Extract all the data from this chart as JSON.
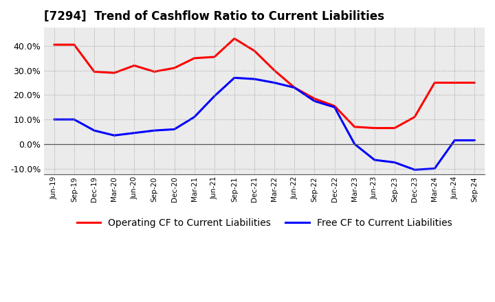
{
  "title": "[7294]  Trend of Cashflow Ratio to Current Liabilities",
  "x_labels": [
    "Jun-19",
    "Sep-19",
    "Dec-19",
    "Mar-20",
    "Jun-20",
    "Sep-20",
    "Dec-20",
    "Mar-21",
    "Jun-21",
    "Sep-21",
    "Dec-21",
    "Mar-22",
    "Jun-22",
    "Sep-22",
    "Dec-22",
    "Mar-23",
    "Jun-23",
    "Sep-23",
    "Dec-23",
    "Mar-24",
    "Jun-24",
    "Sep-24"
  ],
  "operating_cf": [
    0.405,
    0.405,
    0.295,
    0.29,
    0.32,
    0.295,
    0.31,
    0.35,
    0.355,
    0.43,
    0.38,
    0.3,
    0.23,
    0.185,
    0.155,
    0.07,
    0.065,
    0.065,
    0.11,
    0.25,
    0.25,
    0.25
  ],
  "free_cf": [
    0.1,
    0.1,
    0.055,
    0.035,
    0.045,
    0.055,
    0.06,
    0.11,
    0.195,
    0.27,
    0.265,
    0.25,
    0.23,
    0.175,
    0.15,
    0.0,
    -0.065,
    -0.075,
    -0.105,
    -0.1,
    0.015,
    0.015
  ],
  "ylim_low": -0.125,
  "ylim_high": 0.475,
  "yticks": [
    -0.1,
    0.0,
    0.1,
    0.2,
    0.3,
    0.4
  ],
  "operating_color": "#ff0000",
  "free_color": "#0000ff",
  "bg_color": "#ffffff",
  "plot_bg_color": "#ebebeb",
  "grid_color": "#999999",
  "title_fontsize": 12,
  "legend_fontsize": 10,
  "linewidth": 2.2
}
